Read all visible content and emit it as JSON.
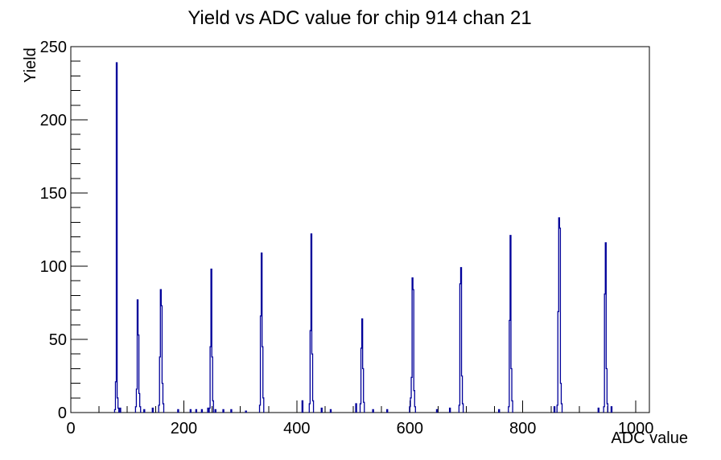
{
  "window": {
    "background_color": "#ffffff"
  },
  "chart_data": {
    "type": "histogram",
    "title": "Yield vs ADC value for chip 914 chan 21",
    "xlabel": "ADC value",
    "ylabel": "Yield",
    "xlim": [
      0,
      1024
    ],
    "ylim": [
      0,
      250
    ],
    "grid": false,
    "legend": false,
    "line_color": "#00009a",
    "axis_color": "#000000",
    "x_ticks": {
      "major": [
        0,
        200,
        400,
        600,
        800,
        1000
      ],
      "labels": [
        "0",
        "200",
        "400",
        "600",
        "800",
        "1000"
      ],
      "minor_step": 50
    },
    "y_ticks": {
      "major": [
        0,
        50,
        100,
        150,
        200,
        250
      ],
      "labels": [
        "0",
        "50",
        "100",
        "150",
        "200",
        "250"
      ],
      "minor_step": 10
    },
    "bin_width": 1.5,
    "peak_points": [
      {
        "adc": 81,
        "yield": 239
      },
      {
        "adc": 118,
        "yield": 77
      },
      {
        "adc": 160,
        "yield": 84
      },
      {
        "adc": 249,
        "yield": 98
      },
      {
        "adc": 338,
        "yield": 109
      },
      {
        "adc": 426,
        "yield": 122
      },
      {
        "adc": 516,
        "yield": 64
      },
      {
        "adc": 604,
        "yield": 92
      },
      {
        "adc": 691,
        "yield": 99
      },
      {
        "adc": 778,
        "yield": 121
      },
      {
        "adc": 865,
        "yield": 133
      },
      {
        "adc": 947,
        "yield": 116
      }
    ],
    "peaks": [
      {
        "start": 77.5,
        "values": [
          2,
          21,
          239,
          10,
          3
        ]
      },
      {
        "start": 114.5,
        "values": [
          4,
          16,
          77,
          53,
          13,
          4
        ]
      },
      {
        "start": 155.5,
        "values": [
          5,
          38,
          84,
          73,
          20,
          6
        ]
      },
      {
        "start": 245.0,
        "values": [
          3,
          45,
          98,
          38,
          8
        ]
      },
      {
        "start": 334.0,
        "values": [
          5,
          66,
          109,
          45,
          10
        ]
      },
      {
        "start": 422.0,
        "values": [
          6,
          56,
          122,
          40,
          8
        ]
      },
      {
        "start": 512.0,
        "values": [
          6,
          44,
          64,
          30,
          7
        ]
      },
      {
        "start": 599.5,
        "values": [
          4,
          10,
          24,
          92,
          84,
          15,
          4
        ]
      },
      {
        "start": 687.0,
        "values": [
          5,
          88,
          99,
          25,
          6
        ]
      },
      {
        "start": 774.5,
        "values": [
          4,
          63,
          121,
          30,
          8
        ]
      },
      {
        "start": 860.5,
        "values": [
          5,
          69,
          133,
          126,
          20,
          6
        ]
      },
      {
        "start": 943.0,
        "values": [
          4,
          81,
          116,
          30,
          6
        ]
      }
    ],
    "noise": [
      [
        87.5,
        3
      ],
      [
        130,
        2
      ],
      [
        145,
        3
      ],
      [
        190,
        2
      ],
      [
        212,
        2
      ],
      [
        222,
        2
      ],
      [
        232,
        2
      ],
      [
        243,
        3
      ],
      [
        256,
        2
      ],
      [
        270,
        2
      ],
      [
        284,
        2
      ],
      [
        310,
        1
      ],
      [
        410,
        8
      ],
      [
        444,
        3
      ],
      [
        460,
        2
      ],
      [
        505,
        6
      ],
      [
        535,
        2
      ],
      [
        560,
        2
      ],
      [
        648,
        2
      ],
      [
        671,
        3
      ],
      [
        758,
        2
      ],
      [
        856,
        4
      ],
      [
        934,
        3
      ],
      [
        957,
        4
      ]
    ]
  }
}
